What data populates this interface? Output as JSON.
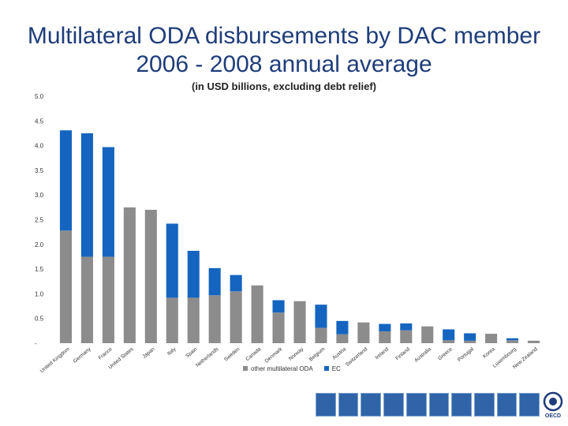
{
  "colors": {
    "other": "#8c8c8c",
    "ec": "#1565c0",
    "title": "#1f3d7a",
    "footer": "#2f64a8"
  },
  "footer": {
    "tile_count": 10,
    "logo_text": "OECD"
  },
  "chart_data": {
    "type": "bar",
    "stacked": true,
    "title": "Multilateral ODA disbursements by DAC member 2006 - 2008 annual average",
    "subtitle": "(in USD billions, excluding debt relief)",
    "xlabel": "",
    "ylabel": "",
    "ylim": [
      0,
      5.0
    ],
    "y_ticks": [
      "-",
      "0.5",
      "1.0",
      "1.5",
      "2.0",
      "2.5",
      "3.0",
      "3.5",
      "4.0",
      "4.5",
      "5.0"
    ],
    "grid": false,
    "legend_position": "bottom",
    "categories": [
      "United Kingdom",
      "Germany",
      "France",
      "United States",
      "Japan",
      "Italy",
      "Spain",
      "Netherlands",
      "Sweden",
      "Canada",
      "Denmark",
      "Norway",
      "Belgium",
      "Austria",
      "Switzerland",
      "Ireland",
      "Finland",
      "Australia",
      "Greece",
      "Portugal",
      "Korea",
      "Luxembourg",
      "New Zealand"
    ],
    "series": [
      {
        "name": "other multilateral ODA",
        "values": [
          2.28,
          1.75,
          1.75,
          2.75,
          2.7,
          0.92,
          0.92,
          0.97,
          1.05,
          1.17,
          0.62,
          0.85,
          0.31,
          0.18,
          0.42,
          0.24,
          0.26,
          0.34,
          0.06,
          0.05,
          0.19,
          0.06,
          0.05
        ]
      },
      {
        "name": "EC",
        "values": [
          2.03,
          2.5,
          2.22,
          0.0,
          0.0,
          1.5,
          0.95,
          0.55,
          0.33,
          0.0,
          0.25,
          0.0,
          0.47,
          0.27,
          0.0,
          0.15,
          0.14,
          0.0,
          0.22,
          0.15,
          0.0,
          0.04,
          0.0
        ]
      }
    ]
  }
}
